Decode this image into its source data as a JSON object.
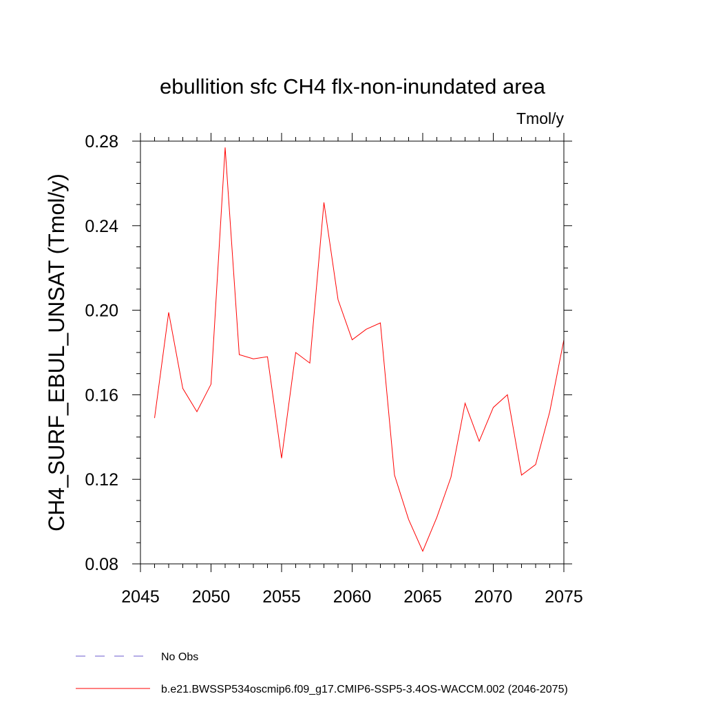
{
  "chart_data": {
    "type": "line",
    "title": "ebullition sfc CH4 flx-non-inundated area",
    "units_label": "Tmol/y",
    "ylabel": "CH4_SURF_EBUL_UNSAT  (Tmol/y)",
    "xlabel": "",
    "xlim": [
      2045,
      2075
    ],
    "ylim": [
      0.08,
      0.28
    ],
    "x_ticks": [
      2045,
      2050,
      2055,
      2060,
      2065,
      2070,
      2075
    ],
    "y_ticks": [
      "0.08",
      "0.12",
      "0.16",
      "0.20",
      "0.24",
      "0.28"
    ],
    "grid": false,
    "legend_position": "bottom",
    "series": [
      {
        "name": "b.e21.BWSSP534oscmip6.f09_g17.CMIP6-SSP5-3.4OS-WACCM.002 (2046-2075)",
        "color": "#ff0000",
        "line_style": "solid",
        "x": [
          2046,
          2047,
          2048,
          2049,
          2050,
          2051,
          2052,
          2053,
          2054,
          2055,
          2056,
          2057,
          2058,
          2059,
          2060,
          2061,
          2062,
          2063,
          2064,
          2065,
          2066,
          2067,
          2068,
          2069,
          2070,
          2071,
          2072,
          2073,
          2074,
          2075
        ],
        "values": [
          0.149,
          0.199,
          0.163,
          0.152,
          0.165,
          0.277,
          0.179,
          0.177,
          0.178,
          0.13,
          0.18,
          0.175,
          0.251,
          0.205,
          0.186,
          0.191,
          0.194,
          0.122,
          0.101,
          0.086,
          0.102,
          0.121,
          0.156,
          0.138,
          0.154,
          0.16,
          0.122,
          0.127,
          0.152,
          0.186
        ]
      }
    ],
    "legend": [
      {
        "label": "No Obs",
        "color": "#6a5acd",
        "line_style": "dashed"
      },
      {
        "label": "b.e21.BWSSP534oscmip6.f09_g17.CMIP6-SSP5-3.4OS-WACCM.002 (2046-2075)",
        "color": "#ff0000",
        "line_style": "solid"
      }
    ]
  }
}
